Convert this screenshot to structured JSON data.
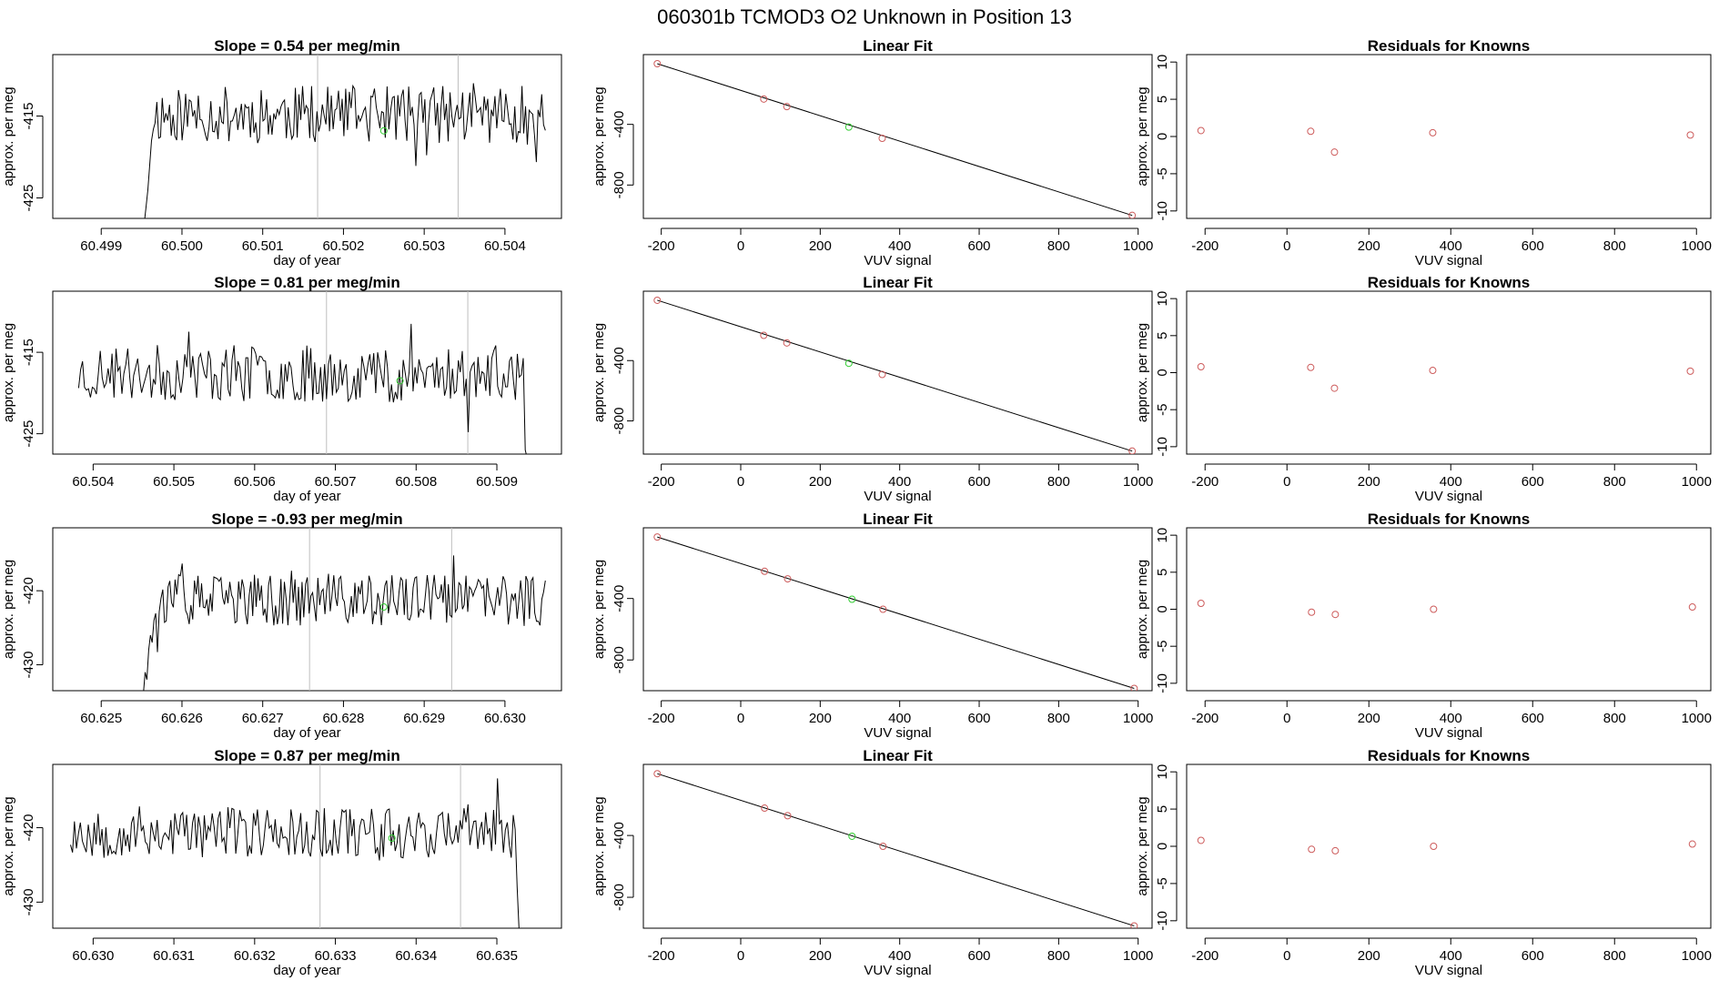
{
  "figure_title": "060301b      TCMOD3    O2 Unknown in Position  13",
  "colors": {
    "trace": "#000000",
    "known_point": "#cd5c5c",
    "unknown_point": "#32cd32",
    "vline": "#bebebe",
    "fit_line": "#000000",
    "frame": "#000000"
  },
  "chart_data": [
    {
      "type": "line",
      "row": 1,
      "title": "Slope =  0.54  per meg/min",
      "xlabel": "day of year",
      "ylabel": "approx. per meg",
      "xlim": [
        60.4984,
        60.5047
      ],
      "ylim": [
        -427.5,
        -407.5
      ],
      "xticks": [
        60.499,
        60.5,
        60.501,
        60.502,
        60.503,
        60.504
      ],
      "xtick_labels": [
        "60.499",
        "60.500",
        "60.501",
        "60.502",
        "60.503",
        "60.504"
      ],
      "yticks": [
        -415,
        -425
      ],
      "ytick_labels": [
        "-415",
        "-425"
      ],
      "series": [
        {
          "name": "trace",
          "x_start": 60.4994,
          "x_end": 60.5045,
          "baseline": -414.8,
          "seed": 11,
          "lead_in": [
            -428,
            -428,
            -428,
            -428,
            -428,
            -428,
            -428,
            -426,
            -424,
            -421,
            -418
          ]
        }
      ],
      "vlines": [
        60.50168,
        60.50342
      ],
      "unknown_point": {
        "x": 60.5025,
        "y": -416.8
      }
    },
    {
      "type": "scatter",
      "row": 1,
      "title": "Linear Fit",
      "xlabel": "VUV signal",
      "ylabel": "approx. per meg",
      "xlim": [
        -245,
        1035
      ],
      "ylim": [
        -1020,
        60
      ],
      "xticks": [
        -200,
        0,
        200,
        400,
        600,
        800,
        1000
      ],
      "xtick_labels": [
        "-200",
        "0",
        "200",
        "400",
        "600",
        "800",
        "1000"
      ],
      "yticks": [
        -400,
        -800
      ],
      "ytick_labels": [
        "-400",
        "-800"
      ],
      "known_points": [
        [
          -210,
          0
        ],
        [
          58,
          -233
        ],
        [
          116,
          -283
        ],
        [
          356,
          -492
        ],
        [
          985,
          -1000
        ]
      ],
      "unknown_point": [
        272,
        -418
      ],
      "fit_line": [
        [
          -210,
          0
        ],
        [
          985,
          -1000
        ]
      ]
    },
    {
      "type": "scatter",
      "row": 1,
      "title": "Residuals for Knowns",
      "xlabel": "VUV signal",
      "ylabel": "approx. per meg",
      "xlim": [
        -245,
        1035
      ],
      "ylim": [
        -11,
        11
      ],
      "xticks": [
        -200,
        0,
        200,
        400,
        600,
        800,
        1000
      ],
      "xtick_labels": [
        "-200",
        "0",
        "200",
        "400",
        "600",
        "800",
        "1000"
      ],
      "yticks": [
        10,
        5,
        0,
        -5,
        -10
      ],
      "ytick_labels": [
        "10",
        "5",
        "0",
        "-5",
        "-10"
      ],
      "known_points": [
        [
          -210,
          0.8
        ],
        [
          58,
          0.7
        ],
        [
          116,
          -2.1
        ],
        [
          356,
          0.5
        ],
        [
          985,
          0.2
        ]
      ]
    },
    {
      "type": "line",
      "row": 2,
      "title": "Slope =  0.81  per meg/min",
      "xlabel": "day of year",
      "ylabel": "approx. per meg",
      "xlim": [
        60.5035,
        60.5098
      ],
      "ylim": [
        -427.5,
        -407.5
      ],
      "xticks": [
        60.504,
        60.505,
        60.506,
        60.507,
        60.508,
        60.509
      ],
      "xtick_labels": [
        "60.504",
        "60.505",
        "60.506",
        "60.507",
        "60.508",
        "60.509"
      ],
      "yticks": [
        -415,
        -425
      ],
      "ytick_labels": [
        "-415",
        "-425"
      ],
      "series": [
        {
          "name": "trace",
          "x_start": 60.50382,
          "x_end": 60.5094,
          "baseline": -417.6,
          "seed": 23,
          "lead_out": [
            -427,
            -428,
            -428
          ]
        }
      ],
      "vlines": [
        60.50689,
        60.50864
      ],
      "unknown_point": {
        "x": 60.5078,
        "y": -418.5
      }
    },
    {
      "type": "scatter",
      "row": 2,
      "title": "Linear Fit",
      "xlabel": "VUV signal",
      "ylabel": "approx. per meg",
      "xlim": [
        -245,
        1035
      ],
      "ylim": [
        -1020,
        60
      ],
      "xticks": [
        -200,
        0,
        200,
        400,
        600,
        800,
        1000
      ],
      "xtick_labels": [
        "-200",
        "0",
        "200",
        "400",
        "600",
        "800",
        "1000"
      ],
      "yticks": [
        -400,
        -800
      ],
      "ytick_labels": [
        "-400",
        "-800"
      ],
      "known_points": [
        [
          -210,
          0
        ],
        [
          58,
          -233
        ],
        [
          116,
          -283
        ],
        [
          356,
          -492
        ],
        [
          985,
          -1000
        ]
      ],
      "unknown_point": [
        272,
        -418
      ],
      "fit_line": [
        [
          -210,
          0
        ],
        [
          985,
          -1000
        ]
      ]
    },
    {
      "type": "scatter",
      "row": 2,
      "title": "Residuals for Knowns",
      "xlabel": "VUV signal",
      "ylabel": "approx. per meg",
      "xlim": [
        -245,
        1035
      ],
      "ylim": [
        -11,
        11
      ],
      "xticks": [
        -200,
        0,
        200,
        400,
        600,
        800,
        1000
      ],
      "xtick_labels": [
        "-200",
        "0",
        "200",
        "400",
        "600",
        "800",
        "1000"
      ],
      "yticks": [
        10,
        5,
        0,
        -5,
        -10
      ],
      "ytick_labels": [
        "10",
        "5",
        "0",
        "-5",
        "-10"
      ],
      "known_points": [
        [
          -210,
          0.8
        ],
        [
          58,
          0.7
        ],
        [
          116,
          -2.1
        ],
        [
          356,
          0.3
        ],
        [
          985,
          0.2
        ]
      ]
    },
    {
      "type": "line",
      "row": 3,
      "title": "Slope =  -0.93  per meg/min",
      "xlabel": "day of year",
      "ylabel": "approx. per meg",
      "xlim": [
        60.6244,
        60.6307
      ],
      "ylim": [
        -433.5,
        -411.5
      ],
      "xticks": [
        60.625,
        60.626,
        60.627,
        60.628,
        60.629,
        60.63
      ],
      "xtick_labels": [
        "60.625",
        "60.626",
        "60.627",
        "60.628",
        "60.629",
        "60.630"
      ],
      "yticks": [
        -420,
        -430
      ],
      "ytick_labels": [
        "-420",
        "-430"
      ],
      "series": [
        {
          "name": "trace",
          "x_start": 60.6255,
          "x_end": 60.6305,
          "baseline": -421.3,
          "seed": 37,
          "lead_in": [
            -434,
            -434,
            -431,
            -432,
            -428,
            -426,
            -427,
            -424
          ]
        }
      ],
      "vlines": [
        60.62758,
        60.62934
      ],
      "unknown_point": {
        "x": 60.6285,
        "y": -422.2
      }
    },
    {
      "type": "scatter",
      "row": 3,
      "title": "Linear Fit",
      "xlabel": "VUV signal",
      "ylabel": "approx. per meg",
      "xlim": [
        -245,
        1035
      ],
      "ylim": [
        -1000,
        60
      ],
      "xticks": [
        -200,
        0,
        200,
        400,
        600,
        800,
        1000
      ],
      "xtick_labels": [
        "-200",
        "0",
        "200",
        "400",
        "600",
        "800",
        "1000"
      ],
      "yticks": [
        -400,
        -800
      ],
      "ytick_labels": [
        "-400",
        "-800"
      ],
      "known_points": [
        [
          -210,
          0
        ],
        [
          60,
          -223
        ],
        [
          118,
          -272
        ],
        [
          358,
          -470
        ],
        [
          990,
          -985
        ]
      ],
      "unknown_point": [
        280,
        -405
      ],
      "fit_line": [
        [
          -210,
          0
        ],
        [
          990,
          -985
        ]
      ]
    },
    {
      "type": "scatter",
      "row": 3,
      "title": "Residuals for Knowns",
      "xlabel": "VUV signal",
      "ylabel": "approx. per meg",
      "xlim": [
        -245,
        1035
      ],
      "ylim": [
        -11,
        11
      ],
      "xticks": [
        -200,
        0,
        200,
        400,
        600,
        800,
        1000
      ],
      "xtick_labels": [
        "-200",
        "0",
        "200",
        "400",
        "600",
        "800",
        "1000"
      ],
      "yticks": [
        10,
        5,
        0,
        -5,
        -10
      ],
      "ytick_labels": [
        "10",
        "5",
        "0",
        "-5",
        "-10"
      ],
      "known_points": [
        [
          -210,
          0.8
        ],
        [
          60,
          -0.4
        ],
        [
          118,
          -0.7
        ],
        [
          358,
          0.0
        ],
        [
          990,
          0.3
        ]
      ]
    },
    {
      "type": "line",
      "row": 4,
      "title": "Slope =  0.87  per meg/min",
      "xlabel": "day of year",
      "ylabel": "approx. per meg",
      "xlim": [
        60.6295,
        60.6358
      ],
      "ylim": [
        -433.5,
        -411.5
      ],
      "xticks": [
        60.63,
        60.631,
        60.632,
        60.633,
        60.634,
        60.635
      ],
      "xtick_labels": [
        "60.630",
        "60.631",
        "60.632",
        "60.633",
        "60.634",
        "60.635"
      ],
      "yticks": [
        -420,
        -430
      ],
      "ytick_labels": [
        "-420",
        "-430"
      ],
      "series": [
        {
          "name": "trace",
          "x_start": 60.62972,
          "x_end": 60.6353,
          "baseline": -420.6,
          "seed": 53,
          "lead_out": [
            -428,
            -434,
            -434
          ]
        }
      ],
      "vlines": [
        60.63281,
        60.63455
      ],
      "unknown_point": {
        "x": 60.6337,
        "y": -421.4
      }
    },
    {
      "type": "scatter",
      "row": 4,
      "title": "Linear Fit",
      "xlabel": "VUV signal",
      "ylabel": "approx. per meg",
      "xlim": [
        -245,
        1035
      ],
      "ylim": [
        -1000,
        60
      ],
      "xticks": [
        -200,
        0,
        200,
        400,
        600,
        800,
        1000
      ],
      "xtick_labels": [
        "-200",
        "0",
        "200",
        "400",
        "600",
        "800",
        "1000"
      ],
      "yticks": [
        -400,
        -800
      ],
      "ytick_labels": [
        "-400",
        "-800"
      ],
      "known_points": [
        [
          -210,
          0
        ],
        [
          60,
          -223
        ],
        [
          118,
          -272
        ],
        [
          358,
          -470
        ],
        [
          990,
          -985
        ]
      ],
      "unknown_point": [
        280,
        -405
      ],
      "fit_line": [
        [
          -210,
          0
        ],
        [
          990,
          -985
        ]
      ]
    },
    {
      "type": "scatter",
      "row": 4,
      "title": "Residuals for Knowns",
      "xlabel": "VUV signal",
      "ylabel": "approx. per meg",
      "xlim": [
        -245,
        1035
      ],
      "ylim": [
        -11,
        11
      ],
      "xticks": [
        -200,
        0,
        200,
        400,
        600,
        800,
        1000
      ],
      "xtick_labels": [
        "-200",
        "0",
        "200",
        "400",
        "600",
        "800",
        "1000"
      ],
      "yticks": [
        10,
        5,
        0,
        -5,
        -10
      ],
      "ytick_labels": [
        "10",
        "5",
        "0",
        "-5",
        "-10"
      ],
      "known_points": [
        [
          -210,
          0.8
        ],
        [
          60,
          -0.4
        ],
        [
          118,
          -0.6
        ],
        [
          358,
          0.0
        ],
        [
          990,
          0.3
        ]
      ]
    }
  ]
}
